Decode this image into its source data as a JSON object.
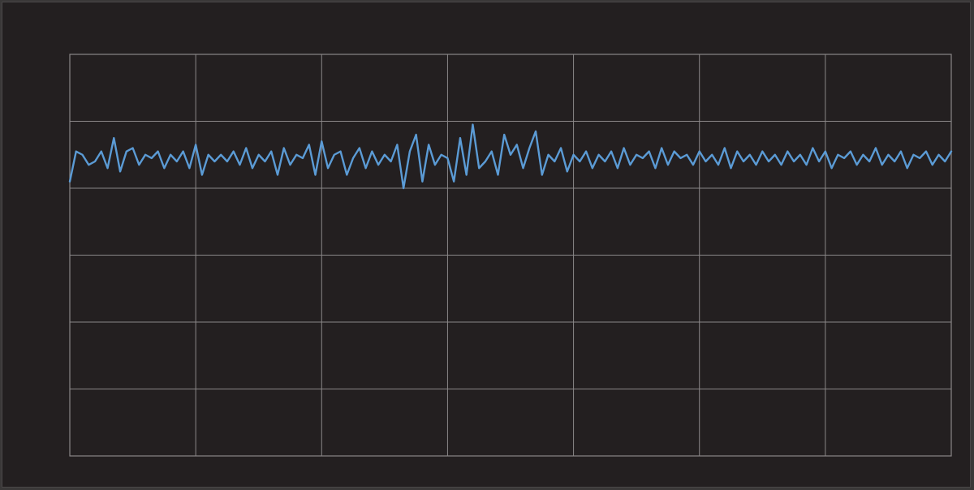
{
  "chart_data": {
    "type": "line",
    "title": "",
    "xlabel": "",
    "ylabel": "",
    "grid": true,
    "legend": "none",
    "x_divisions": 7,
    "y_divisions": 6,
    "xlim": [
      0,
      7
    ],
    "ylim": [
      -3,
      3
    ],
    "colors": {
      "background": "#231f20",
      "frame": "#3a3838",
      "grid": "#8a8788",
      "trace": "#5b9bd5"
    },
    "series": [
      {
        "values_x": [
          0.0,
          0.05,
          0.1,
          0.15,
          0.2,
          0.25,
          0.3,
          0.35,
          0.4,
          0.45,
          0.5,
          0.55,
          0.6,
          0.65,
          0.7,
          0.75,
          0.8,
          0.85,
          0.9,
          0.95,
          1.0,
          1.05,
          1.1,
          1.15,
          1.2,
          1.25,
          1.3,
          1.35,
          1.4,
          1.45,
          1.5,
          1.55,
          1.6,
          1.65,
          1.7,
          1.75,
          1.8,
          1.85,
          1.9,
          1.95,
          2.0,
          2.05,
          2.1,
          2.15,
          2.2,
          2.25,
          2.3,
          2.35,
          2.4,
          2.45,
          2.5,
          2.55,
          2.6,
          2.65,
          2.7,
          2.75,
          2.8,
          2.85,
          2.9,
          2.95,
          3.0,
          3.05,
          3.1,
          3.15,
          3.2,
          3.25,
          3.3,
          3.35,
          3.4,
          3.45,
          3.5,
          3.55,
          3.6,
          3.65,
          3.7,
          3.75,
          3.8,
          3.85,
          3.9,
          3.95,
          4.0,
          4.05,
          4.1,
          4.15,
          4.2,
          4.25,
          4.3,
          4.35,
          4.4,
          4.45,
          4.5,
          4.55,
          4.6,
          4.65,
          4.7,
          4.75,
          4.8,
          4.85,
          4.9,
          4.95,
          5.0,
          5.05,
          5.1,
          5.15,
          5.2,
          5.25,
          5.3,
          5.35,
          5.4,
          5.45,
          5.5,
          5.55,
          5.6,
          5.65,
          5.7,
          5.75,
          5.8,
          5.85,
          5.9,
          5.95,
          6.0,
          6.05,
          6.1,
          6.15,
          6.2,
          6.25,
          6.3,
          6.35,
          6.4,
          6.45,
          6.5,
          6.55,
          6.6,
          6.65,
          6.7,
          6.75,
          6.8,
          6.85,
          6.9,
          6.95,
          7.0
        ],
        "values_y": [
          1.1,
          1.55,
          1.5,
          1.35,
          1.4,
          1.55,
          1.3,
          1.75,
          1.25,
          1.55,
          1.6,
          1.35,
          1.5,
          1.45,
          1.55,
          1.3,
          1.5,
          1.4,
          1.55,
          1.3,
          1.65,
          1.2,
          1.5,
          1.4,
          1.5,
          1.4,
          1.55,
          1.35,
          1.6,
          1.3,
          1.5,
          1.4,
          1.55,
          1.2,
          1.6,
          1.35,
          1.5,
          1.45,
          1.65,
          1.2,
          1.7,
          1.3,
          1.5,
          1.55,
          1.2,
          1.45,
          1.6,
          1.3,
          1.55,
          1.35,
          1.5,
          1.4,
          1.65,
          1.0,
          1.55,
          1.8,
          1.1,
          1.65,
          1.35,
          1.5,
          1.45,
          1.1,
          1.75,
          1.2,
          1.95,
          1.3,
          1.4,
          1.55,
          1.2,
          1.8,
          1.5,
          1.65,
          1.3,
          1.6,
          1.85,
          1.2,
          1.5,
          1.4,
          1.6,
          1.25,
          1.5,
          1.4,
          1.55,
          1.3,
          1.5,
          1.4,
          1.55,
          1.3,
          1.6,
          1.35,
          1.5,
          1.45,
          1.55,
          1.3,
          1.6,
          1.35,
          1.55,
          1.45,
          1.5,
          1.35,
          1.55,
          1.4,
          1.5,
          1.35,
          1.6,
          1.3,
          1.55,
          1.4,
          1.5,
          1.35,
          1.55,
          1.4,
          1.5,
          1.35,
          1.55,
          1.4,
          1.5,
          1.35,
          1.6,
          1.4,
          1.55,
          1.3,
          1.5,
          1.45,
          1.55,
          1.35,
          1.5,
          1.4,
          1.6,
          1.35,
          1.5,
          1.4,
          1.55,
          1.3,
          1.5,
          1.45,
          1.55,
          1.35,
          1.5,
          1.4,
          1.55
        ]
      }
    ]
  }
}
